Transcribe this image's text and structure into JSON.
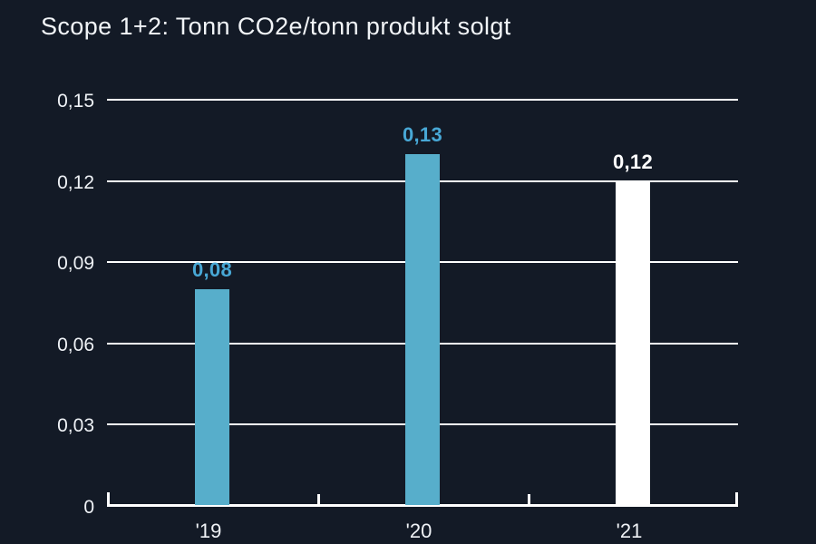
{
  "title": "Scope 1+2: Tonn CO2e/tonn produkt solgt",
  "colors": {
    "background": "#131A26",
    "grid": "#FFFFFF",
    "axis": "#FFFFFF",
    "title_text": "#F1F4F7",
    "tick_text": "#EFF2F6",
    "bar_blue": "#57AECB",
    "bar_white": "#FFFFFF",
    "label_blue": "#48A8D6",
    "label_white": "#FFFFFF"
  },
  "chart_data": {
    "type": "bar",
    "title": "Scope 1+2: Tonn CO2e/tonn produkt solgt",
    "categories": [
      "'19",
      "'20",
      "'21"
    ],
    "values": [
      0.08,
      0.13,
      0.12
    ],
    "value_labels": [
      "0,08",
      "0,13",
      "0,12"
    ],
    "bar_colors": [
      "#57AECB",
      "#57AECB",
      "#FFFFFF"
    ],
    "value_label_colors": [
      "#48A8D6",
      "#48A8D6",
      "#FFFFFF"
    ],
    "xlabel": "",
    "ylabel": "",
    "ylim": [
      0,
      0.15
    ],
    "yticks": [
      0,
      0.03,
      0.06,
      0.09,
      0.12,
      0.15
    ],
    "ytick_labels": [
      "0",
      "0,03",
      "0,06",
      "0,09",
      "0,12",
      "0,15"
    ],
    "grid": "horizontal-white",
    "legend": "none"
  }
}
